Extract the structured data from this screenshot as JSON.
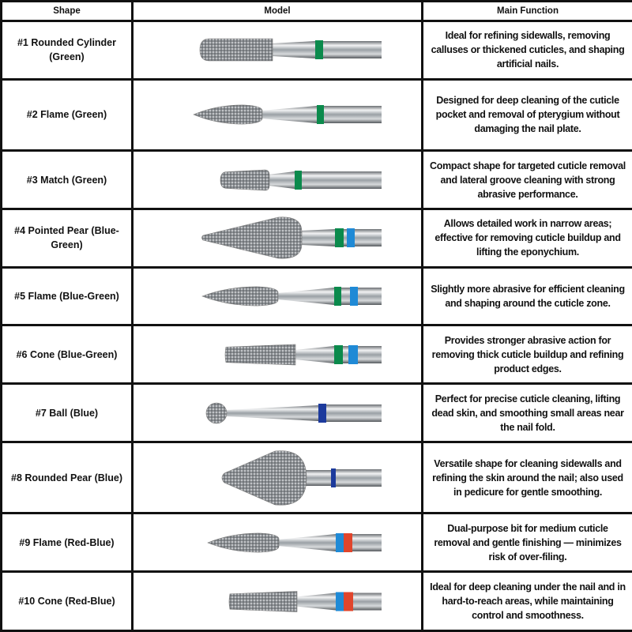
{
  "header": {
    "shape": "Shape",
    "model": "Model",
    "function": "Main Function"
  },
  "band_colors": {
    "green": "#0b8a4c",
    "blue": "#1f8ad6",
    "dark_blue": "#1c3a9c",
    "red": "#e0452c"
  },
  "rows": [
    {
      "shape": "#1 Rounded Cylinder (Green)",
      "bit": "rounded-cylinder",
      "bands": [
        "green"
      ],
      "function": "Ideal for refining sidewalls, removing calluses or thickened cuticles, and shaping artificial nails."
    },
    {
      "shape": "#2 Flame (Green)",
      "bit": "flame",
      "bands": [
        "green"
      ],
      "function": "Designed for deep cleaning of the cuticle pocket and removal of pterygium without damaging the nail plate."
    },
    {
      "shape": "#3 Match (Green)",
      "bit": "match",
      "bands": [
        "green"
      ],
      "function": "Compact shape for targeted cuticle removal and lateral groove cleaning with strong abrasive performance."
    },
    {
      "shape": "#4 Pointed Pear (Blue-Green)",
      "bit": "pointed-pear",
      "bands": [
        "green",
        "blue"
      ],
      "function": "Allows detailed work in narrow areas; effective for removing cuticle buildup and lifting the eponychium."
    },
    {
      "shape": "#5 Flame (Blue-Green)",
      "bit": "flame",
      "bands": [
        "green",
        "blue"
      ],
      "function": "Slightly more abrasive for efficient cleaning and shaping around the cuticle zone."
    },
    {
      "shape": "#6 Cone (Blue-Green)",
      "bit": "cone",
      "bands": [
        "green",
        "blue"
      ],
      "function": "Provides stronger abrasive action for removing thick cuticle buildup and refining product edges."
    },
    {
      "shape": "#7 Ball (Blue)",
      "bit": "ball",
      "bands": [
        "dark_blue"
      ],
      "function": "Perfect for precise cuticle cleaning, lifting dead skin, and smoothing small areas near the nail fold."
    },
    {
      "shape": "#8 Rounded Pear (Blue)",
      "bit": "rounded-pear",
      "bands": [
        "dark_blue"
      ],
      "function": "Versatile shape for cleaning sidewalls and refining the skin around the nail; also used in pedicure for gentle smoothing."
    },
    {
      "shape": "#9 Flame (Red-Blue)",
      "bit": "flame",
      "bands": [
        "blue",
        "red"
      ],
      "function": "Dual-purpose bit for medium cuticle removal and gentle finishing — minimizes risk of over-filing."
    },
    {
      "shape": "#10 Cone (Red-Blue)",
      "bit": "cone",
      "bands": [
        "blue",
        "red"
      ],
      "function": "Ideal for deep cleaning under the nail and in hard-to-reach areas, while maintaining control and smoothness."
    }
  ]
}
